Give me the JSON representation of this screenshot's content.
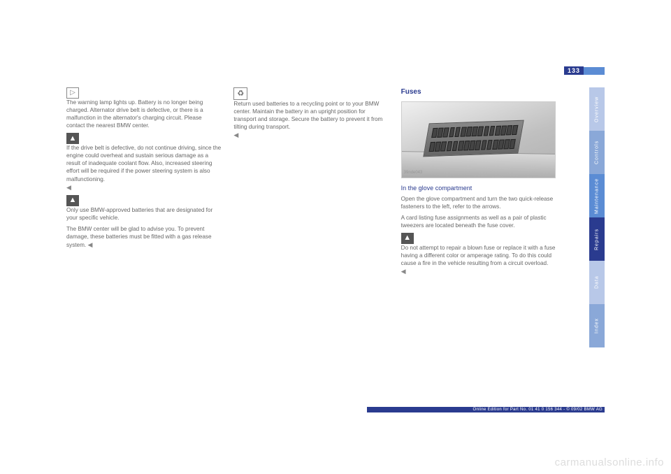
{
  "page_number": "133",
  "col1": {
    "p1_icon_text": "The warning lamp lights up. Battery is no longer being charged. Alternator drive belt is defective, or there is a malfunction in the alternator's charging circuit. Please contact the nearest BMW center.",
    "p2": "If the drive belt is defective, do not continue driving, since the engine could overheat and sustain serious damage as a result of inadequate coolant flow. Also, increased steering effort will be required if the power steering system is also malfunctioning.",
    "triangle1": "◀",
    "p3_icon_text": "Only use BMW-approved batteries that are designated for your specific vehicle.",
    "p4": "The BMW center will be glad to advise you. To prevent damage, these batteries must be fitted with a gas release system.",
    "triangle2": "◀"
  },
  "col2": {
    "p1_icon_text": "Return used batteries to a recycling point or to your BMW center. Maintain the battery in an upright position for transport and storage. Secure the battery to prevent it from tilting during transport.",
    "triangle1": "◀"
  },
  "col3": {
    "heading": "Fuses",
    "figure_label": "39nde043",
    "subheading": "In the glove compartment",
    "p1": "Open the glove compartment and turn the two quick-release fasteners to the left, refer to the arrows.",
    "p2": "A card listing fuse assignments as well as a pair of plastic tweezers are located beneath the fuse cover.",
    "p3_icon_text": "Do not attempt to repair a blown fuse or replace it with a fuse having a different color or amperage rating. To do this could cause a fire in the vehicle resulting from a circuit overload.",
    "triangle1": "◀"
  },
  "tabs": [
    {
      "label": "Overview",
      "bg": "#b8c8e8"
    },
    {
      "label": "Controls",
      "bg": "#8aa8d8"
    },
    {
      "label": "Maintenance",
      "bg": "#5b8cd4"
    },
    {
      "label": "Repairs",
      "bg": "#2a3b8f"
    },
    {
      "label": "Data",
      "bg": "#b8c8e8"
    },
    {
      "label": "Index",
      "bg": "#8aa8d8"
    }
  ],
  "footer": "Online Edition for Part No. 01 41 0 156 344 - © 09/02 BMW AG",
  "watermark": "carmanualsonline.info"
}
